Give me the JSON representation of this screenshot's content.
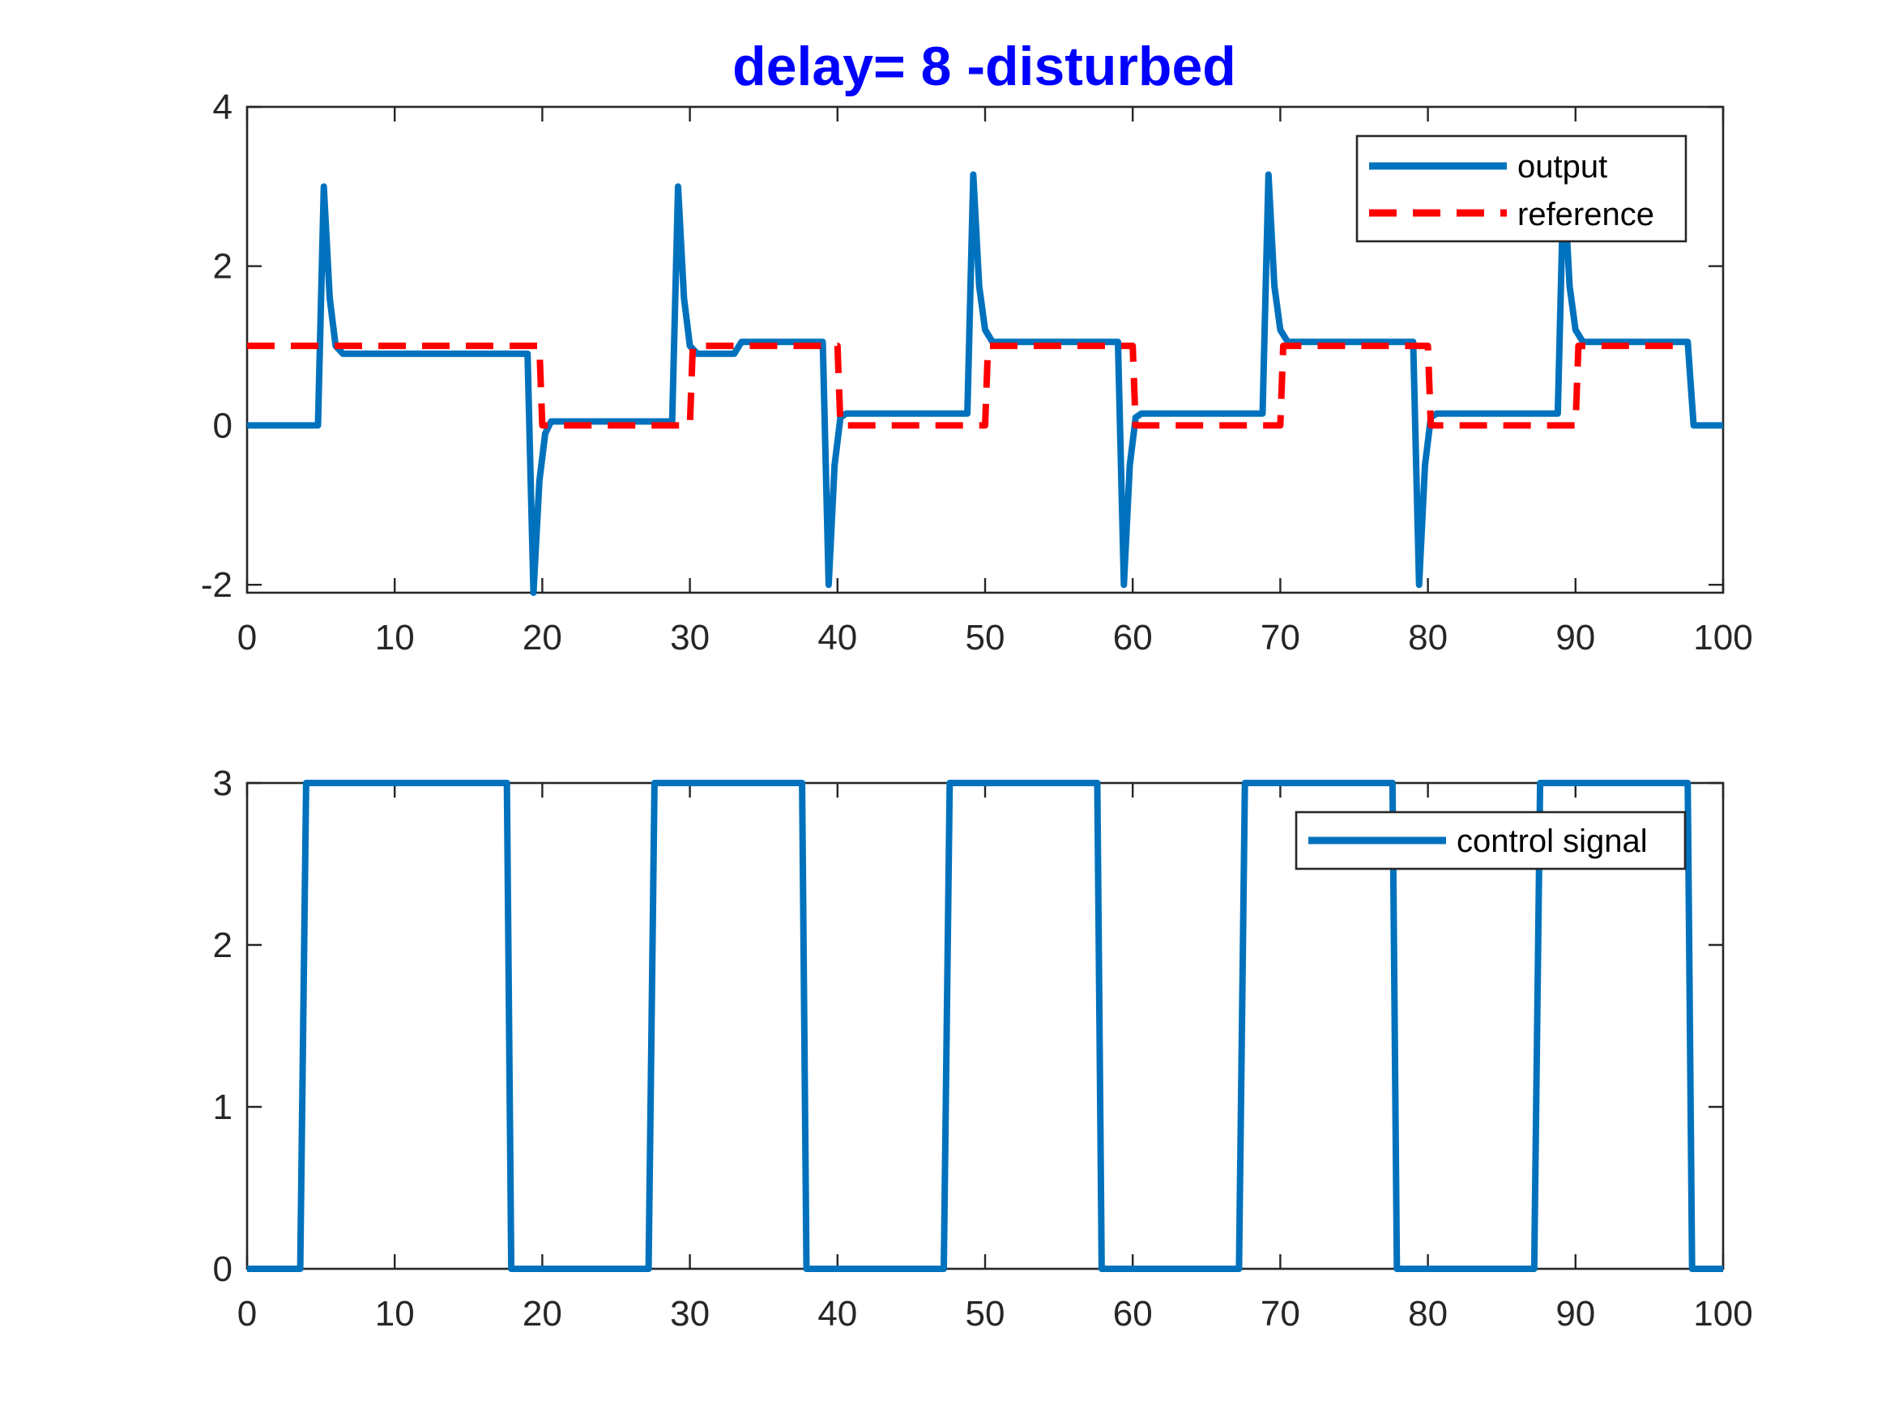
{
  "chart_data": [
    {
      "type": "line",
      "title": "delay= 8 -disturbed",
      "xlim": [
        0,
        100
      ],
      "ylim": [
        -2.1,
        4
      ],
      "xticks": [
        0,
        10,
        20,
        30,
        40,
        50,
        60,
        70,
        80,
        90,
        100
      ],
      "xtick_labels": [
        "0",
        "10",
        "20",
        "30",
        "40",
        "50",
        "60",
        "70",
        "80",
        "90",
        "100"
      ],
      "yticks": [
        -2,
        0,
        2,
        4
      ],
      "ytick_labels": [
        "-2",
        "0",
        "2",
        "4"
      ],
      "grid": false,
      "legend_position": "top-right",
      "series": [
        {
          "name": "output",
          "color": "#0072bd",
          "style": "solid",
          "x": [
            0,
            4.8,
            5.2,
            5.6,
            6.0,
            6.5,
            7,
            19.0,
            19.4,
            19.8,
            20.2,
            20.6,
            21,
            28.8,
            29.2,
            29.6,
            30.0,
            30.5,
            33,
            33.5,
            39.0,
            39.4,
            39.8,
            40.2,
            40.6,
            41,
            48.8,
            49.2,
            49.6,
            50.0,
            50.5,
            59.0,
            59.4,
            59.8,
            60.2,
            60.6,
            61,
            68.8,
            69.2,
            69.6,
            70.0,
            70.5,
            79.0,
            79.4,
            79.8,
            80.2,
            80.6,
            81,
            88.8,
            89.2,
            89.6,
            90.0,
            90.5,
            97.6,
            98.0,
            100
          ],
          "y": [
            0,
            0,
            3.0,
            1.6,
            1.0,
            0.9,
            0.9,
            0.9,
            -2.1,
            -0.7,
            -0.1,
            0.05,
            0.05,
            0.05,
            3.0,
            1.6,
            1.0,
            0.9,
            0.9,
            1.05,
            1.05,
            -2.0,
            -0.5,
            0.1,
            0.15,
            0.15,
            0.15,
            3.15,
            1.75,
            1.2,
            1.05,
            1.05,
            -2.0,
            -0.5,
            0.1,
            0.15,
            0.15,
            0.15,
            3.15,
            1.75,
            1.2,
            1.05,
            1.05,
            -2.0,
            -0.5,
            0.1,
            0.15,
            0.15,
            0.15,
            3.15,
            1.75,
            1.2,
            1.05,
            1.05,
            0,
            0
          ]
        },
        {
          "name": "reference",
          "color": "#ff0000",
          "style": "dashed",
          "x": [
            0,
            19.8,
            20.0,
            30.0,
            30.2,
            40.0,
            40.2,
            50.0,
            50.2,
            60.0,
            60.2,
            70.0,
            70.2,
            80.0,
            80.2,
            90.0,
            90.2,
            97.5
          ],
          "y": [
            1,
            1,
            0,
            0,
            1,
            1,
            0,
            0,
            1,
            1,
            0,
            0,
            1,
            1,
            0,
            0,
            1,
            1
          ]
        }
      ]
    },
    {
      "type": "line",
      "title": "",
      "xlim": [
        0,
        100
      ],
      "ylim": [
        0,
        3
      ],
      "xticks": [
        0,
        10,
        20,
        30,
        40,
        50,
        60,
        70,
        80,
        90,
        100
      ],
      "xtick_labels": [
        "0",
        "10",
        "20",
        "30",
        "40",
        "50",
        "60",
        "70",
        "80",
        "90",
        "100"
      ],
      "yticks": [
        0,
        1,
        2,
        3
      ],
      "ytick_labels": [
        "0",
        "1",
        "2",
        "3"
      ],
      "grid": false,
      "legend_position": "top-right",
      "series": [
        {
          "name": "control signal",
          "color": "#0072bd",
          "style": "solid",
          "x": [
            0,
            3.6,
            4.0,
            17.6,
            17.9,
            27.2,
            27.6,
            37.6,
            37.9,
            47.2,
            47.6,
            57.6,
            57.9,
            67.2,
            67.6,
            77.6,
            77.9,
            87.2,
            87.6,
            97.6,
            97.9,
            100
          ],
          "y": [
            0,
            0,
            3,
            3,
            0,
            0,
            3,
            3,
            0,
            0,
            3,
            3,
            0,
            0,
            3,
            3,
            0,
            0,
            3,
            3,
            0,
            0
          ]
        }
      ]
    }
  ]
}
